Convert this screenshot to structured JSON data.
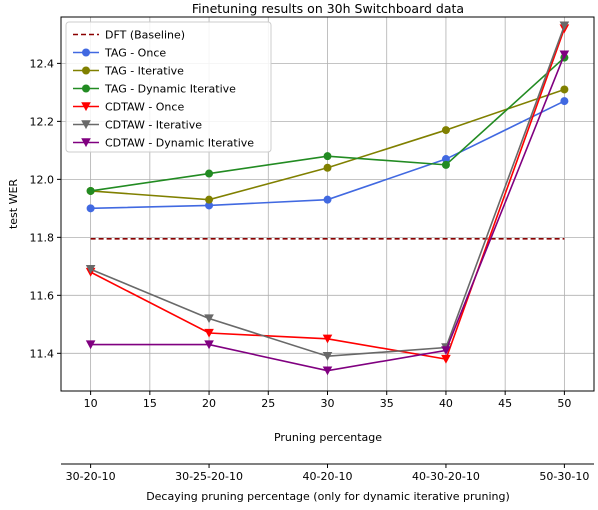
{
  "chart_data": {
    "type": "line",
    "title": "Finetuning results on 30h Switchboard data",
    "xlabel": "Pruning percentage",
    "ylabel": "test WER",
    "secondary_xlabel": "Decaying pruning percentage (only for dynamic iterative pruning)",
    "xlim": [
      7.5,
      52.5
    ],
    "ylim": [
      11.27,
      12.56
    ],
    "xticks": [
      10,
      15,
      20,
      25,
      30,
      35,
      40,
      45,
      50
    ],
    "yticks": [
      11.4,
      11.6,
      11.8,
      12.0,
      12.2,
      12.4
    ],
    "ytick_labels": [
      "11.4",
      "11.6",
      "11.8",
      "12.0",
      "12.2",
      "12.4"
    ],
    "secondary_xticks": [
      {
        "x": 10,
        "label": "30-20-10"
      },
      {
        "x": 20,
        "label": "30-25-20-10"
      },
      {
        "x": 30,
        "label": "40-20-10"
      },
      {
        "x": 40,
        "label": "40-30-20-10"
      },
      {
        "x": 50,
        "label": "50-30-10"
      }
    ],
    "grid": true,
    "legend_position": "upper-left",
    "x": [
      10,
      20,
      30,
      40,
      50
    ],
    "series": [
      {
        "name": "DFT (Baseline)",
        "color": "#8b0000",
        "dashed": true,
        "marker": "none",
        "values": [
          11.795,
          11.795,
          11.795,
          11.795,
          11.795
        ]
      },
      {
        "name": "TAG - Once",
        "color": "#4169e1",
        "marker": "circle",
        "values": [
          11.9,
          11.91,
          11.93,
          12.07,
          12.27
        ]
      },
      {
        "name": "TAG - Iterative",
        "color": "#808000",
        "marker": "circle",
        "values": [
          11.96,
          11.93,
          12.04,
          12.17,
          12.31
        ]
      },
      {
        "name": "TAG - Dynamic Iterative",
        "color": "#228b22",
        "marker": "circle",
        "values": [
          11.96,
          12.02,
          12.08,
          12.05,
          12.42
        ]
      },
      {
        "name": "CDTAW - Once",
        "color": "#ff0000",
        "marker": "triangle-down",
        "values": [
          11.68,
          11.47,
          11.45,
          11.38,
          12.52
        ]
      },
      {
        "name": "CDTAW - Iterative",
        "color": "#696969",
        "marker": "triangle-down",
        "values": [
          11.69,
          11.52,
          11.39,
          11.42,
          12.53
        ]
      },
      {
        "name": "CDTAW - Dynamic Iterative",
        "color": "#800080",
        "marker": "triangle-down",
        "values": [
          11.43,
          11.43,
          11.34,
          11.41,
          12.43
        ]
      }
    ]
  }
}
